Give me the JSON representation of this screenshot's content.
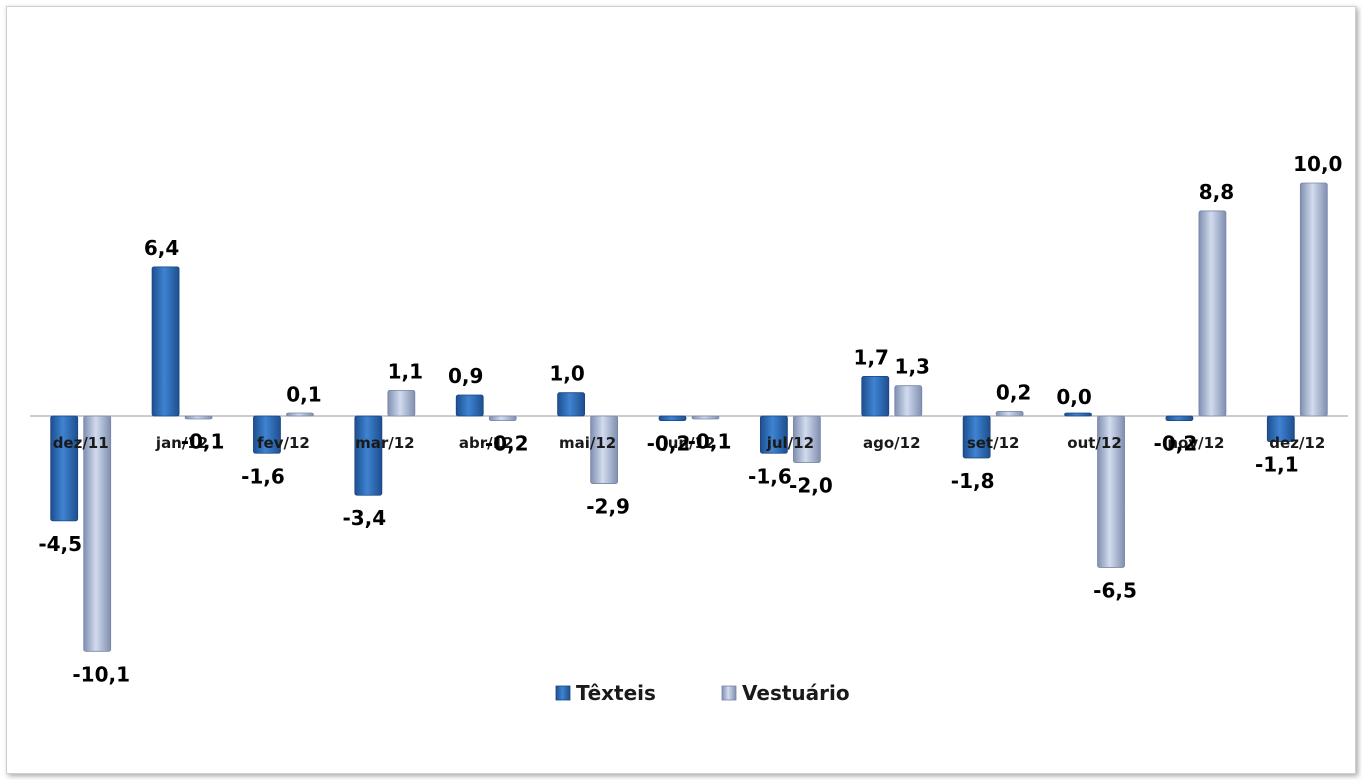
{
  "chart_data": {
    "type": "bar",
    "categories": [
      "dez/11",
      "jan/12",
      "fev/12",
      "mar/12",
      "abr/12",
      "mai/12",
      "jun/12",
      "jul/12",
      "ago/12",
      "set/12",
      "out/12",
      "nov/12",
      "dez/12"
    ],
    "series": [
      {
        "name": "Têxteis",
        "color": "#2e6cb5",
        "values": [
          -4.5,
          6.4,
          -1.6,
          -3.4,
          0.9,
          1.0,
          -0.2,
          -1.6,
          1.7,
          -1.8,
          0.0,
          -0.2,
          -1.1
        ],
        "labels": [
          "-4,5",
          "6,4",
          "-1,6",
          "-3,4",
          "0,9",
          "1,0",
          "-0,2",
          "-1,6",
          "1,7",
          "-1,8",
          "0,0",
          "-0,2",
          "-1,1"
        ]
      },
      {
        "name": "Vestuário",
        "color": "#a9b7d3",
        "values": [
          -10.1,
          -0.1,
          0.1,
          1.1,
          -0.2,
          -2.9,
          -0.1,
          -2.0,
          1.3,
          0.2,
          -6.5,
          8.8,
          10.0
        ],
        "labels": [
          "-10,1",
          "-0,1",
          "0,1",
          "1,1",
          "-0,2",
          "-2,9",
          "-0,1",
          "-2,0",
          "1,3",
          "0,2",
          "-6,5",
          "8,8",
          "10,0"
        ]
      }
    ],
    "ylim": [
      -11,
      11
    ],
    "legend": "bottom-center",
    "grid": false,
    "title": "",
    "xlabel": "",
    "ylabel": ""
  }
}
